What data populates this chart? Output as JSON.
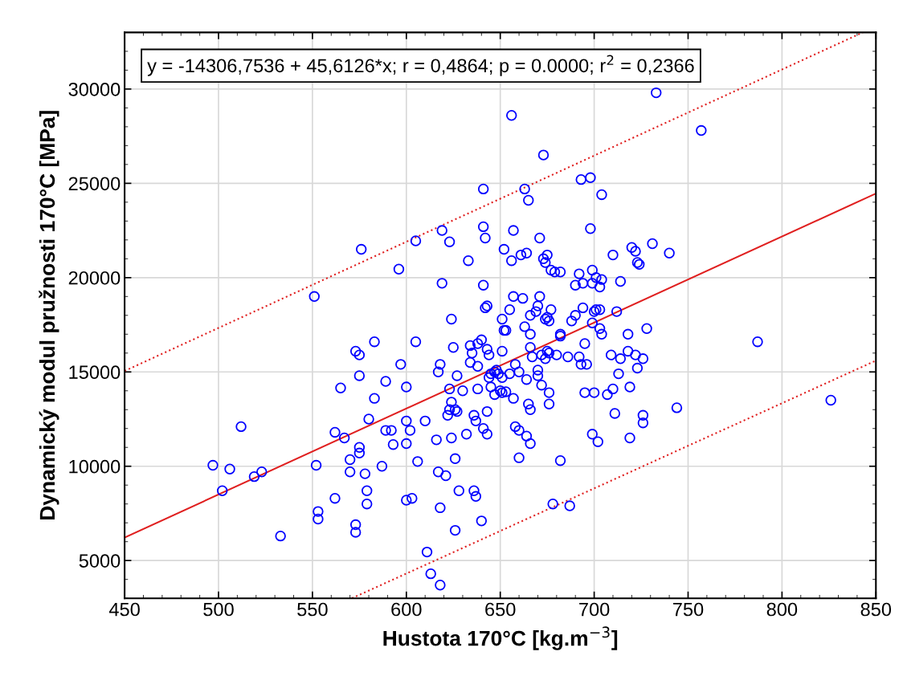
{
  "chart_data": {
    "type": "scatter",
    "xlabel": "Hustota 170°C [kg.m$^{−3}$]",
    "ylabel": "Dynamický modul pružnosti 170°C [MPa]",
    "annotations": [
      "y = -14306,7536 + 45,6126*x; r = 0,4864; p = 0.0000; r$^{2}$ = 0,2366"
    ],
    "xlim": [
      450,
      850
    ],
    "ylim": [
      3000,
      33000
    ],
    "xticks": [
      450,
      500,
      550,
      600,
      650,
      700,
      750,
      800,
      850
    ],
    "yticks": [
      5000,
      10000,
      15000,
      20000,
      25000,
      30000
    ],
    "grid": true,
    "series": [
      {
        "color": "#0000ff",
        "marker": "circle",
        "x": [
          497,
          502,
          506,
          512,
          519,
          523,
          533,
          551,
          552,
          553,
          553,
          562,
          562,
          565,
          567,
          570,
          570,
          573,
          573,
          573,
          575,
          575,
          575,
          575,
          576,
          578,
          579,
          579,
          580,
          583,
          583,
          587,
          589,
          589,
          592,
          593,
          596,
          597,
          600,
          600,
          600,
          600,
          602,
          603,
          605,
          605,
          606,
          610,
          611,
          613,
          616,
          617,
          617,
          618,
          618,
          618,
          619,
          619,
          621,
          622,
          623,
          623,
          623,
          624,
          624,
          624,
          625,
          626,
          626,
          626,
          627,
          627,
          628,
          630,
          632,
          633,
          634,
          634,
          635,
          636,
          636,
          637,
          637,
          638,
          638,
          638,
          640,
          640,
          641,
          641,
          641,
          641,
          642,
          642,
          643,
          643,
          643,
          644,
          643,
          644,
          645,
          645,
          647,
          647,
          648,
          649,
          650,
          651,
          651,
          651,
          652,
          652,
          653,
          653,
          651,
          655,
          655,
          656,
          656,
          657,
          657,
          657,
          658,
          658,
          660,
          660,
          660,
          661,
          662,
          663,
          663,
          664,
          664,
          664,
          665,
          665,
          666,
          666,
          666,
          666,
          666,
          667,
          669,
          670,
          670,
          670,
          671,
          671,
          672,
          672,
          673,
          673,
          674,
          674,
          674,
          675,
          675,
          675,
          676,
          676,
          676,
          676,
          677,
          677,
          678,
          679,
          680,
          682,
          682,
          682,
          682,
          686,
          687,
          688,
          690,
          690,
          692,
          692,
          693,
          693,
          694,
          694,
          695,
          695,
          696,
          698,
          698,
          699,
          699,
          699,
          699,
          700,
          700,
          701,
          701,
          702,
          703,
          703,
          703,
          704,
          704,
          704,
          707,
          709,
          710,
          710,
          711,
          712,
          713,
          714,
          714,
          718,
          718,
          719,
          719,
          720,
          722,
          722,
          723,
          723,
          724,
          726,
          726,
          726,
          728,
          731,
          733,
          740,
          744,
          757,
          787,
          826
        ],
        "values": [
          10050,
          8700,
          9850,
          12100,
          9450,
          9700,
          6300,
          19000,
          10050,
          7600,
          7200,
          11800,
          8300,
          14150,
          11500,
          10350,
          9700,
          6900,
          6500,
          16100,
          15900,
          14800,
          11000,
          10700,
          21500,
          9600,
          8700,
          8000,
          12500,
          13600,
          16600,
          10000,
          11900,
          14500,
          11900,
          11150,
          20450,
          15400,
          14200,
          12400,
          11200,
          8200,
          11900,
          8300,
          21950,
          16600,
          10250,
          12400,
          5450,
          4300,
          11400,
          9700,
          15000,
          15400,
          7800,
          3700,
          19700,
          22500,
          9500,
          12700,
          13000,
          21900,
          14100,
          13400,
          17800,
          11500,
          16300,
          10400,
          13000,
          6600,
          14800,
          12900,
          8700,
          14000,
          11700,
          20900,
          15500,
          16400,
          16000,
          8700,
          12700,
          8400,
          12400,
          16500,
          15300,
          14100,
          16700,
          7100,
          19600,
          12000,
          22700,
          24700,
          22100,
          18400,
          11700,
          16200,
          12900,
          15900,
          18500,
          14700,
          14200,
          14900,
          15000,
          13800,
          15100,
          14900,
          14000,
          14700,
          17800,
          16100,
          17200,
          21500,
          17200,
          13950,
          13900,
          18300,
          14900,
          28600,
          20900,
          22500,
          19000,
          13600,
          15400,
          12100,
          10450,
          11900,
          15000,
          21200,
          18900,
          17400,
          24700,
          11600,
          21300,
          14600,
          13300,
          24100,
          18000,
          17000,
          16300,
          13000,
          11200,
          15800,
          18200,
          15100,
          14800,
          18500,
          22100,
          19000,
          14300,
          15900,
          21000,
          26500,
          15700,
          17800,
          20800,
          16100,
          17900,
          21200,
          16000,
          13300,
          13900,
          17700,
          18300,
          20400,
          8000,
          20300,
          15900,
          16900,
          10300,
          17000,
          20300,
          15800,
          7900,
          17700,
          18000,
          19600,
          15800,
          20200,
          25200,
          15400,
          19700,
          18400,
          13900,
          16500,
          15400,
          22600,
          25300,
          19700,
          17600,
          20400,
          11700,
          13900,
          18200,
          20000,
          18300,
          11300,
          19500,
          18300,
          17300,
          24400,
          17000,
          19900,
          13800,
          15900,
          21200,
          14100,
          12800,
          18200,
          14900,
          19800,
          15700,
          17000,
          16100,
          11500,
          14200,
          21600,
          21400,
          15900,
          20800,
          15200,
          20700,
          15700,
          12700,
          12300,
          17300,
          21800,
          29800,
          21300,
          13100,
          27800,
          16600,
          13500
        ]
      },
      {
        "type": "line",
        "color": "#e02020",
        "line_style": "solid",
        "x": [
          450,
          850
        ],
        "values": [
          6220,
          24460
        ]
      },
      {
        "type": "line",
        "color": "#e02020",
        "line_style": "dotted",
        "x": [
          450,
          843
        ],
        "values": [
          15050,
          33000
        ]
      },
      {
        "type": "line",
        "color": "#e02020",
        "line_style": "dotted",
        "x": [
          571,
          850
        ],
        "values": [
          3000,
          15600
        ]
      }
    ]
  }
}
